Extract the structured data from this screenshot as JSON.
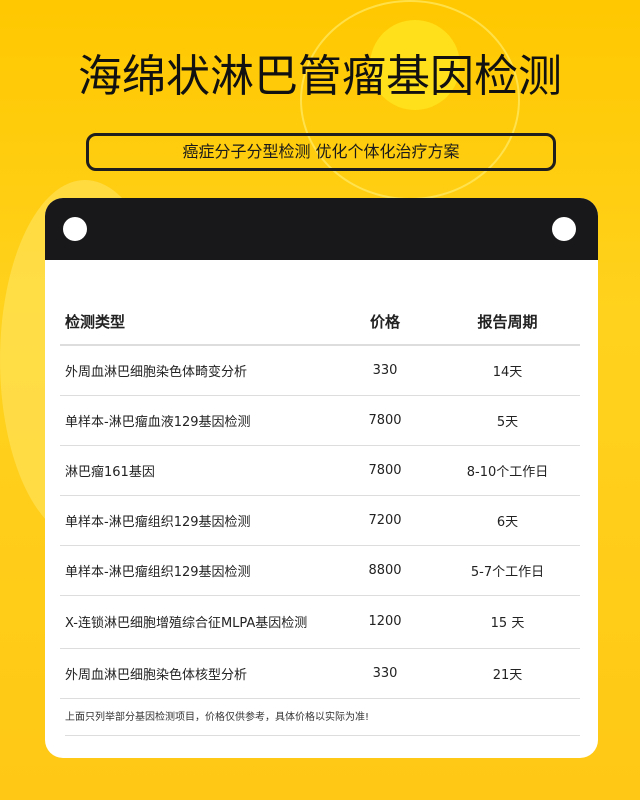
{
  "title": "海绵状淋巴管瘤基因检测",
  "subtitle": "癌症分子分型检测 优化个体化治疗方案",
  "table": {
    "headers": [
      "检测类型",
      "价格",
      "报告周期"
    ],
    "rows": [
      [
        "外周血淋巴细胞染色体畸变分析",
        "330",
        "14天"
      ],
      [
        "单样本-淋巴瘤血液129基因检测",
        "7800",
        "5天"
      ],
      [
        "淋巴瘤161基因",
        "7800",
        "8-10个工作日"
      ],
      [
        "单样本-淋巴瘤组织129基因检测",
        "7200",
        "6天"
      ],
      [
        "单样本-淋巴瘤组织129基因检测",
        "8800",
        "5-7个工作日"
      ],
      [
        "X-连锁淋巴细胞增殖综合征MLPA基因检测",
        "1200",
        "15 天"
      ],
      [
        "外周血淋巴细胞染色体核型分析",
        "330",
        "21天"
      ]
    ]
  },
  "note": "上面只列举部分基因检测项目，价格仅供参考，具体价格以实际为准!"
}
